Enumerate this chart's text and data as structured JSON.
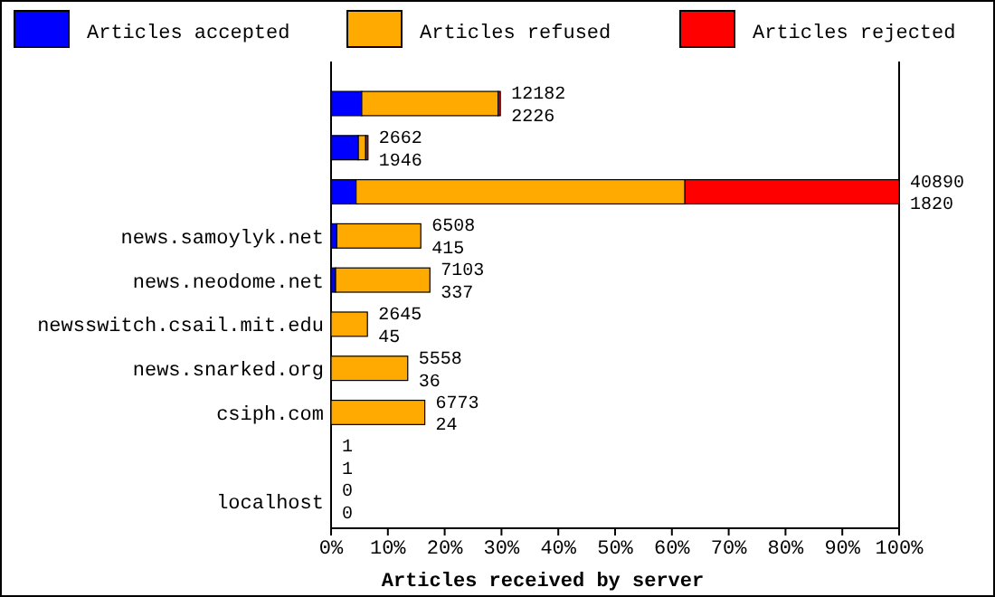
{
  "chart_data": {
    "type": "bar",
    "orientation": "horizontal",
    "stacked": true,
    "xlabel": "Articles received by server",
    "legend": "top",
    "categories": [
      null,
      null,
      null,
      "news.samoylyk.net",
      "news.neodome.net",
      "newsswitch.csail.mit.edu",
      "news.snarked.org",
      "csiph.com",
      null,
      "localhost"
    ],
    "series": [
      {
        "name": "Articles accepted",
        "color": "#0000ff",
        "values": [
          5.4,
          4.8,
          4.4,
          1.0,
          0.8,
          null,
          null,
          null,
          0,
          0
        ]
      },
      {
        "name": "Articles refused",
        "color": "#ffaa00",
        "values": [
          24.0,
          1.3,
          57.9,
          14.8,
          16.6,
          6.4,
          13.5,
          16.5,
          0,
          0
        ]
      },
      {
        "name": "Articles rejected",
        "color": "#ff0000",
        "values": [
          0.4,
          0.4,
          37.7,
          0,
          0,
          0,
          0,
          0,
          0,
          0
        ]
      }
    ],
    "annotations": [
      "12182",
      "2226",
      "2662",
      "1946",
      "40890",
      "1820",
      "6508",
      "415",
      "7103",
      "337",
      "2645",
      "45",
      "5558",
      "36",
      "6773",
      "24",
      "1",
      "1",
      "0",
      "0"
    ],
    "xlim": [
      0,
      100
    ],
    "xticks": [
      {
        "value": 0,
        "label": "0%"
      },
      {
        "value": 10,
        "label": "10%"
      },
      {
        "value": 20,
        "label": "20%"
      },
      {
        "value": 30,
        "label": "30%"
      },
      {
        "value": 40,
        "label": "40%"
      },
      {
        "value": 50,
        "label": "50%"
      },
      {
        "value": 60,
        "label": "60%"
      },
      {
        "value": 70,
        "label": "70%"
      },
      {
        "value": 80,
        "label": "80%"
      },
      {
        "value": 90,
        "label": "90%"
      },
      {
        "value": 100,
        "label": "100%"
      }
    ]
  }
}
